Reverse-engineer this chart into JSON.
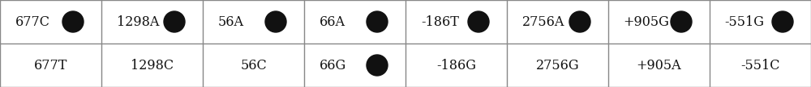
{
  "row1": [
    "677C",
    "1298A",
    "56A",
    "66A",
    "-186T",
    "2756A",
    "+905G",
    "-551G"
  ],
  "row2": [
    "677T",
    "1298C",
    "56C",
    "66G",
    "-186G",
    "2756G",
    "+905A",
    "-551C"
  ],
  "row1_has_dot": [
    true,
    true,
    true,
    true,
    true,
    true,
    true,
    true
  ],
  "row2_has_dot": [
    false,
    false,
    false,
    true,
    false,
    false,
    false,
    false
  ],
  "n_cols": 8,
  "bg_color": "#ffffff",
  "border_color": "#888888",
  "text_color": "#111111",
  "dot_color": "#111111",
  "font_size": 11.5
}
